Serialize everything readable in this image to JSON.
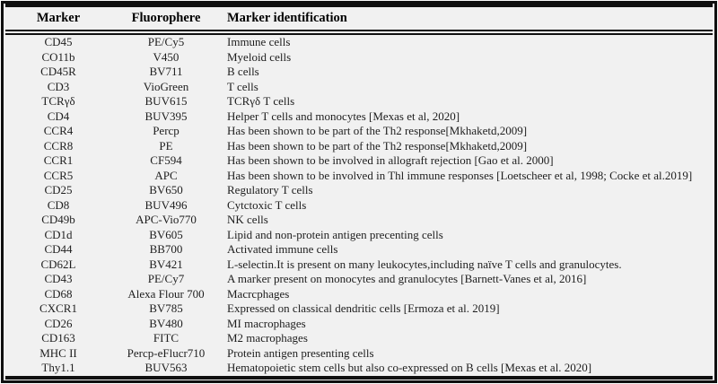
{
  "meta": {
    "background_color": "#f1f1f1",
    "frame_color": "#101010",
    "text_color": "#1e1e1e"
  },
  "table": {
    "headers": {
      "marker": "Marker",
      "fluorophore": "Fluorophere",
      "identification": "Marker identification"
    },
    "rows": [
      {
        "marker": "CD45",
        "fluorophore": "PE/Cy5",
        "identification": "Immune cells"
      },
      {
        "marker": "CO11b",
        "fluorophore": "V450",
        "identification": "Myeloid cells"
      },
      {
        "marker": "CD45R",
        "fluorophore": "BV711",
        "identification": "B cells"
      },
      {
        "marker": "CD3",
        "fluorophore": "VioGreen",
        "identification": "T cells"
      },
      {
        "marker": "TCRγδ",
        "fluorophore": "BUV615",
        "identification": "TCRγδ T cells"
      },
      {
        "marker": "CD4",
        "fluorophore": "BUV395",
        "identification": "Helper T cells and monocytes [Mexas et al, 2020]"
      },
      {
        "marker": "CCR4",
        "fluorophore": "Percp",
        "identification": "Has been shown to be part of the Th2 response[Mkhaketd,2009]"
      },
      {
        "marker": "CCR8",
        "fluorophore": "PE",
        "identification": "Has been shown to be part of the Th2 response[Mkhaketd,2009]"
      },
      {
        "marker": "CCR1",
        "fluorophore": "CF594",
        "identification": "Has been shown to be involved in allograft rejection [Gao et al. 2000]"
      },
      {
        "marker": "CCR5",
        "fluorophore": "APC",
        "identification": "Has been shown to be involved in Thl immune responses [Loetscheer et al, 1998; Cocke et al.2019]"
      },
      {
        "marker": "CD25",
        "fluorophore": "BV650",
        "identification": "Regulatory T cells"
      },
      {
        "marker": "CD8",
        "fluorophore": "BUV496",
        "identification": "Cytctoxic T cells"
      },
      {
        "marker": "CD49b",
        "fluorophore": "APC-Vio770",
        "identification": "NK cells"
      },
      {
        "marker": "CD1d",
        "fluorophore": "BV605",
        "identification": "Lipid and non-protein antigen precenting cells"
      },
      {
        "marker": "CD44",
        "fluorophore": "BB700",
        "identification": "Activated immune cells"
      },
      {
        "marker": "CD62L",
        "fluorophore": "BV421",
        "identification": "L-selectin.It is present on many leukocytes,including naïve T cells and granulocytes."
      },
      {
        "marker": "CD43",
        "fluorophore": "PE/Cy7",
        "identification": "A marker present on monocytes and granulocytes [Barnett-Vanes et al, 2016]"
      },
      {
        "marker": "CD68",
        "fluorophore": "Alexa Flour 700",
        "identification": "Macrcphages"
      },
      {
        "marker": "CXCR1",
        "fluorophore": "BV785",
        "identification": "Expressed on classical dendritic cells [Ermoza et al. 2019]"
      },
      {
        "marker": "CD26",
        "fluorophore": "BV480",
        "identification": "MI macrophages"
      },
      {
        "marker": "CD163",
        "fluorophore": "FITC",
        "identification": "M2 macrophages"
      },
      {
        "marker": "MHC II",
        "fluorophore": "Percp-eFlucr710",
        "identification": "Protein antigen presenting cells"
      },
      {
        "marker": "Thy1.1",
        "fluorophore": "BUV563",
        "identification": "Hematopoietic stem cells but also co-expressed on B cells [Mexas et al. 2020]"
      }
    ]
  }
}
